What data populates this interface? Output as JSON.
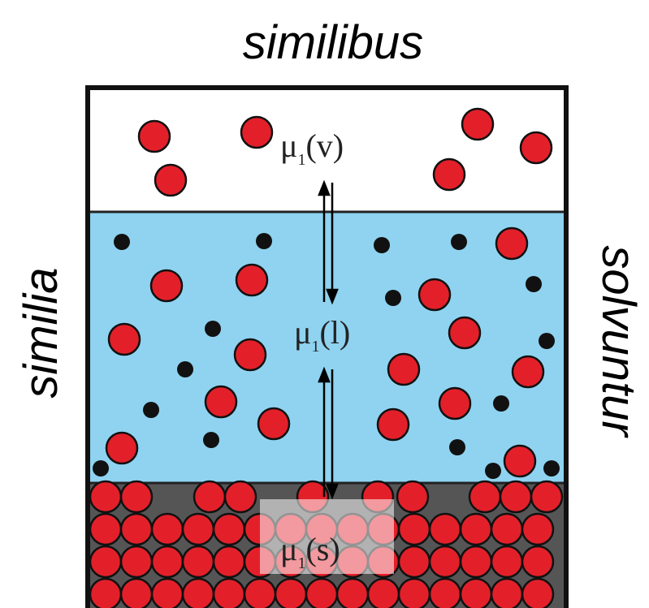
{
  "labels": {
    "top": "similibus",
    "left": "similia",
    "right": "solvuntur"
  },
  "potentials": [
    {
      "symbol": "μ",
      "subscript": "1",
      "phase": "(v)"
    },
    {
      "symbol": "μ",
      "subscript": "1",
      "phase": "(l)"
    },
    {
      "symbol": "μ",
      "subscript": "1",
      "phase": "(s)"
    }
  ]
}
